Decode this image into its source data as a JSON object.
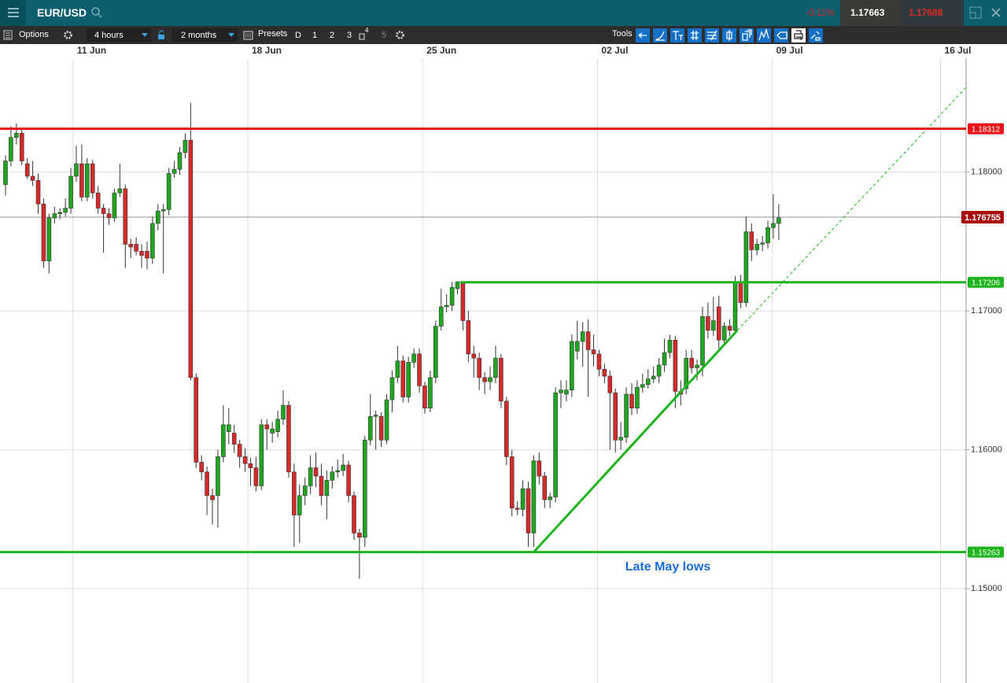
{
  "header": {
    "symbol": "EUR/USD",
    "change": "-0.11%",
    "sell": "1.17663",
    "buy": "1.17688"
  },
  "toolbar": {
    "options": "Options",
    "interval": "4 hours",
    "range": "2 months",
    "presets": "Presets",
    "preset_buttons": [
      "D",
      "1",
      "2",
      "3",
      "4",
      "5"
    ],
    "tools": "Tools"
  },
  "chart_data": {
    "type": "candlestick",
    "up_color": "#1fa51f",
    "down_color": "#d42a2a",
    "open": [
      1.1791,
      1.1808,
      1.1825,
      1.1828,
      1.1806,
      1.1797,
      1.1794,
      1.1777,
      1.1736,
      1.1767,
      1.177,
      1.1771,
      1.1774,
      1.1797,
      1.1806,
      1.1782,
      1.1806,
      1.1785,
      1.1774,
      1.177,
      1.1767,
      1.1785,
      1.1788,
      1.1748,
      1.1748,
      1.1743,
      1.1743,
      1.1738,
      1.1763,
      1.1772,
      1.1773,
      1.1799,
      1.1802,
      1.1814,
      1.1823,
      1.1652,
      1.1591,
      1.1584,
      1.1567,
      1.1567,
      1.1595,
      1.1613,
      1.1612,
      1.1604,
      1.1595,
      1.159,
      1.1587,
      1.1574,
      1.1618,
      1.1612,
      1.1613,
      1.1622,
      1.1632,
      1.1584,
      1.1553,
      1.1567,
      1.1574,
      1.1587,
      1.1581,
      1.1567,
      1.1578,
      1.1584,
      1.1585,
      1.1589,
      1.1567,
      1.154,
      1.1537,
      1.1607,
      1.1624,
      1.1624,
      1.1607,
      1.1636,
      1.1652,
      1.1664,
      1.1638,
      1.1663,
      1.1669,
      1.1646,
      1.163,
      1.1652,
      1.1689,
      1.1703,
      1.1704,
      1.1716,
      1.1721,
      1.1693,
      1.1669,
      1.1666,
      1.1652,
      1.1649,
      1.1652,
      1.1666,
      1.1635,
      1.1595,
      1.1558,
      1.1557,
      1.1572,
      1.154,
      1.1592,
      1.1581,
      1.1564,
      1.1566,
      1.1641,
      1.164,
      1.1643,
      1.1671,
      1.1678,
      1.1685,
      1.1672,
      1.1669,
      1.1658,
      1.1653,
      1.1641,
      1.1607,
      1.1609,
      1.164,
      1.163,
      1.1645,
      1.1647,
      1.1651,
      1.1653,
      1.1661,
      1.167,
      1.1679,
      1.1642,
      1.1644,
      1.1666,
      1.1659,
      1.1661,
      1.1696,
      1.1686,
      1.1703,
      1.1679,
      1.1689,
      1.1686,
      1.1721,
      1.1706,
      1.1757,
      1.1744,
      1.1748,
      1.1749,
      1.176,
      1.1763
    ],
    "high": [
      1.1812,
      1.1833,
      1.1835,
      1.1831,
      1.181,
      1.1808,
      1.1799,
      1.1781,
      1.177,
      1.1775,
      1.1774,
      1.1781,
      1.1803,
      1.1819,
      1.182,
      1.181,
      1.1809,
      1.179,
      1.1777,
      1.1774,
      1.1788,
      1.1806,
      1.1791,
      1.1752,
      1.1753,
      1.1748,
      1.175,
      1.1768,
      1.1777,
      1.1777,
      1.1803,
      1.1808,
      1.1818,
      1.1828,
      1.185,
      1.1655,
      1.1596,
      1.1588,
      1.1572,
      1.16,
      1.1632,
      1.163,
      1.1618,
      1.1607,
      1.1601,
      1.1594,
      1.1595,
      1.1622,
      1.1622,
      1.162,
      1.1628,
      1.1643,
      1.1635,
      1.159,
      1.1575,
      1.158,
      1.1596,
      1.1598,
      1.159,
      1.1585,
      1.1588,
      1.1593,
      1.1597,
      1.1592,
      1.157,
      1.1543,
      1.161,
      1.164,
      1.1628,
      1.1627,
      1.164,
      1.1657,
      1.1675,
      1.1668,
      1.1667,
      1.1673,
      1.1673,
      1.1649,
      1.1657,
      1.1693,
      1.1716,
      1.1712,
      1.1721,
      1.1721,
      1.1721,
      1.17,
      1.1675,
      1.167,
      1.1656,
      1.166,
      1.1675,
      1.1669,
      1.1638,
      1.16,
      1.1563,
      1.1578,
      1.1577,
      1.1596,
      1.1598,
      1.1584,
      1.1569,
      1.1645,
      1.165,
      1.165,
      1.1683,
      1.1693,
      1.1692,
      1.1694,
      1.1683,
      1.1672,
      1.1662,
      1.1657,
      1.1644,
      1.162,
      1.1645,
      1.1648,
      1.165,
      1.1655,
      1.1658,
      1.166,
      1.1666,
      1.168,
      1.1683,
      1.1682,
      1.165,
      1.1672,
      1.1672,
      1.1665,
      1.1703,
      1.1706,
      1.171,
      1.1711,
      1.1692,
      1.1694,
      1.1725,
      1.1726,
      1.1768,
      1.1763,
      1.1752,
      1.1754,
      1.1765,
      1.1784,
      1.1777
    ],
    "low": [
      1.1783,
      1.1804,
      1.182,
      1.1805,
      1.1795,
      1.179,
      1.177,
      1.1731,
      1.1727,
      1.1763,
      1.1766,
      1.1768,
      1.177,
      1.1793,
      1.1779,
      1.1779,
      1.1781,
      1.177,
      1.1742,
      1.1762,
      1.1764,
      1.1782,
      1.1731,
      1.1738,
      1.174,
      1.1731,
      1.173,
      1.1734,
      1.1758,
      1.1727,
      1.1769,
      1.1796,
      1.1798,
      1.181,
      1.165,
      1.1587,
      1.1578,
      1.1553,
      1.1546,
      1.1544,
      1.1591,
      1.1604,
      1.1598,
      1.1587,
      1.1584,
      1.1574,
      1.157,
      1.1571,
      1.16,
      1.1605,
      1.1609,
      1.1618,
      1.158,
      1.153,
      1.1533,
      1.156,
      1.1568,
      1.1573,
      1.156,
      1.155,
      1.1572,
      1.158,
      1.1581,
      1.1562,
      1.1535,
      1.1507,
      1.153,
      1.1603,
      1.16,
      1.1602,
      1.1604,
      1.1627,
      1.1648,
      1.1634,
      1.1634,
      1.1659,
      1.1641,
      1.1626,
      1.1627,
      1.1648,
      1.1686,
      1.1699,
      1.17,
      1.1712,
      1.1686,
      1.1663,
      1.1652,
      1.1643,
      1.164,
      1.1643,
      1.1648,
      1.163,
      1.1589,
      1.1552,
      1.1553,
      1.1552,
      1.153,
      1.153,
      1.1575,
      1.1558,
      1.1558,
      1.1562,
      1.163,
      1.1635,
      1.1638,
      1.1665,
      1.166,
      1.1638,
      1.166,
      1.1653,
      1.1648,
      1.16,
      1.1598,
      1.16,
      1.1605,
      1.1625,
      1.1626,
      1.1641,
      1.1644,
      1.1648,
      1.1648,
      1.1656,
      1.1666,
      1.163,
      1.1632,
      1.164,
      1.1655,
      1.165,
      1.1653,
      1.168,
      1.1682,
      1.1673,
      1.1676,
      1.1682,
      1.1683,
      1.1702,
      1.1703,
      1.1736,
      1.174,
      1.1743,
      1.1745,
      1.1752,
      1.1751
    ],
    "close": [
      1.1808,
      1.1825,
      1.1828,
      1.1808,
      1.1797,
      1.1794,
      1.1777,
      1.1736,
      1.1767,
      1.177,
      1.1771,
      1.1774,
      1.1797,
      1.1806,
      1.1782,
      1.1806,
      1.1785,
      1.1774,
      1.177,
      1.1767,
      1.1785,
      1.1788,
      1.1748,
      1.1746,
      1.1743,
      1.174,
      1.1738,
      1.1763,
      1.1772,
      1.1773,
      1.1799,
      1.1802,
      1.1814,
      1.1823,
      1.1652,
      1.1591,
      1.1584,
      1.1567,
      1.1564,
      1.1595,
      1.1618,
      1.1618,
      1.1604,
      1.1595,
      1.159,
      1.1587,
      1.1574,
      1.1618,
      1.1615,
      1.1615,
      1.1622,
      1.1632,
      1.1584,
      1.1553,
      1.1567,
      1.1574,
      1.1587,
      1.1581,
      1.1567,
      1.1578,
      1.1584,
      1.1585,
      1.1589,
      1.1567,
      1.154,
      1.1537,
      1.1607,
      1.1624,
      1.1625,
      1.1607,
      1.1636,
      1.1652,
      1.1664,
      1.1638,
      1.1663,
      1.1669,
      1.1646,
      1.163,
      1.1652,
      1.1689,
      1.1703,
      1.1704,
      1.1717,
      1.1721,
      1.1693,
      1.1669,
      1.1666,
      1.1652,
      1.1649,
      1.1652,
      1.1666,
      1.1635,
      1.1595,
      1.1558,
      1.1557,
      1.1572,
      1.154,
      1.1592,
      1.1581,
      1.1564,
      1.1566,
      1.1641,
      1.1643,
      1.1643,
      1.1678,
      1.1678,
      1.1685,
      1.1672,
      1.1669,
      1.1658,
      1.1653,
      1.1641,
      1.1607,
      1.1609,
      1.164,
      1.163,
      1.1645,
      1.1647,
      1.1651,
      1.1653,
      1.1661,
      1.167,
      1.1679,
      1.1642,
      1.164,
      1.1666,
      1.1659,
      1.1661,
      1.1696,
      1.1686,
      1.1693,
      1.1679,
      1.1689,
      1.1686,
      1.1721,
      1.1706,
      1.1757,
      1.1744,
      1.1748,
      1.1749,
      1.176,
      1.1763,
      1.1767
    ],
    "xlim": [
      -1.01,
      176.4
    ],
    "xticks": [
      {
        "value": 12.4,
        "label": "11 Jun"
      },
      {
        "value": 44.5,
        "label": "18 Jun"
      },
      {
        "value": 76.6,
        "label": "25 Jun"
      },
      {
        "value": 108.7,
        "label": "02 Jul"
      },
      {
        "value": 140.8,
        "label": "09 Jul"
      },
      {
        "value": 171.7,
        "label": "16 Jul"
      }
    ],
    "ylim": [
      1.1432,
      1.1882
    ],
    "yticks": [
      {
        "value": 1.18,
        "label": "1.18000"
      },
      {
        "value": 1.17,
        "label": "1.17000"
      },
      {
        "value": 1.16,
        "label": "1.16000"
      },
      {
        "value": 1.15,
        "label": "1.15000"
      }
    ],
    "grid": true,
    "levels": [
      {
        "value": 1.18312,
        "color": "#e8141a",
        "start": -1.01
      },
      {
        "value": 1.17206,
        "color": "#1db51d",
        "start": 83.5
      },
      {
        "value": 1.15263,
        "color": "#1db51d",
        "start": -1.01
      }
    ],
    "current_price": {
      "value": 1.176755,
      "color": "#a80c0c"
    },
    "trendline": {
      "x": [
        97.0,
        134.4
      ],
      "y": [
        1.15263,
        1.1686
      ],
      "color": "#1db51d"
    },
    "trendline_extension": {
      "x": [
        134.4,
        176.4
      ],
      "y": [
        1.1686,
        1.1861
      ],
      "color": "#1db51d"
    },
    "annotation": "Late May lows"
  }
}
